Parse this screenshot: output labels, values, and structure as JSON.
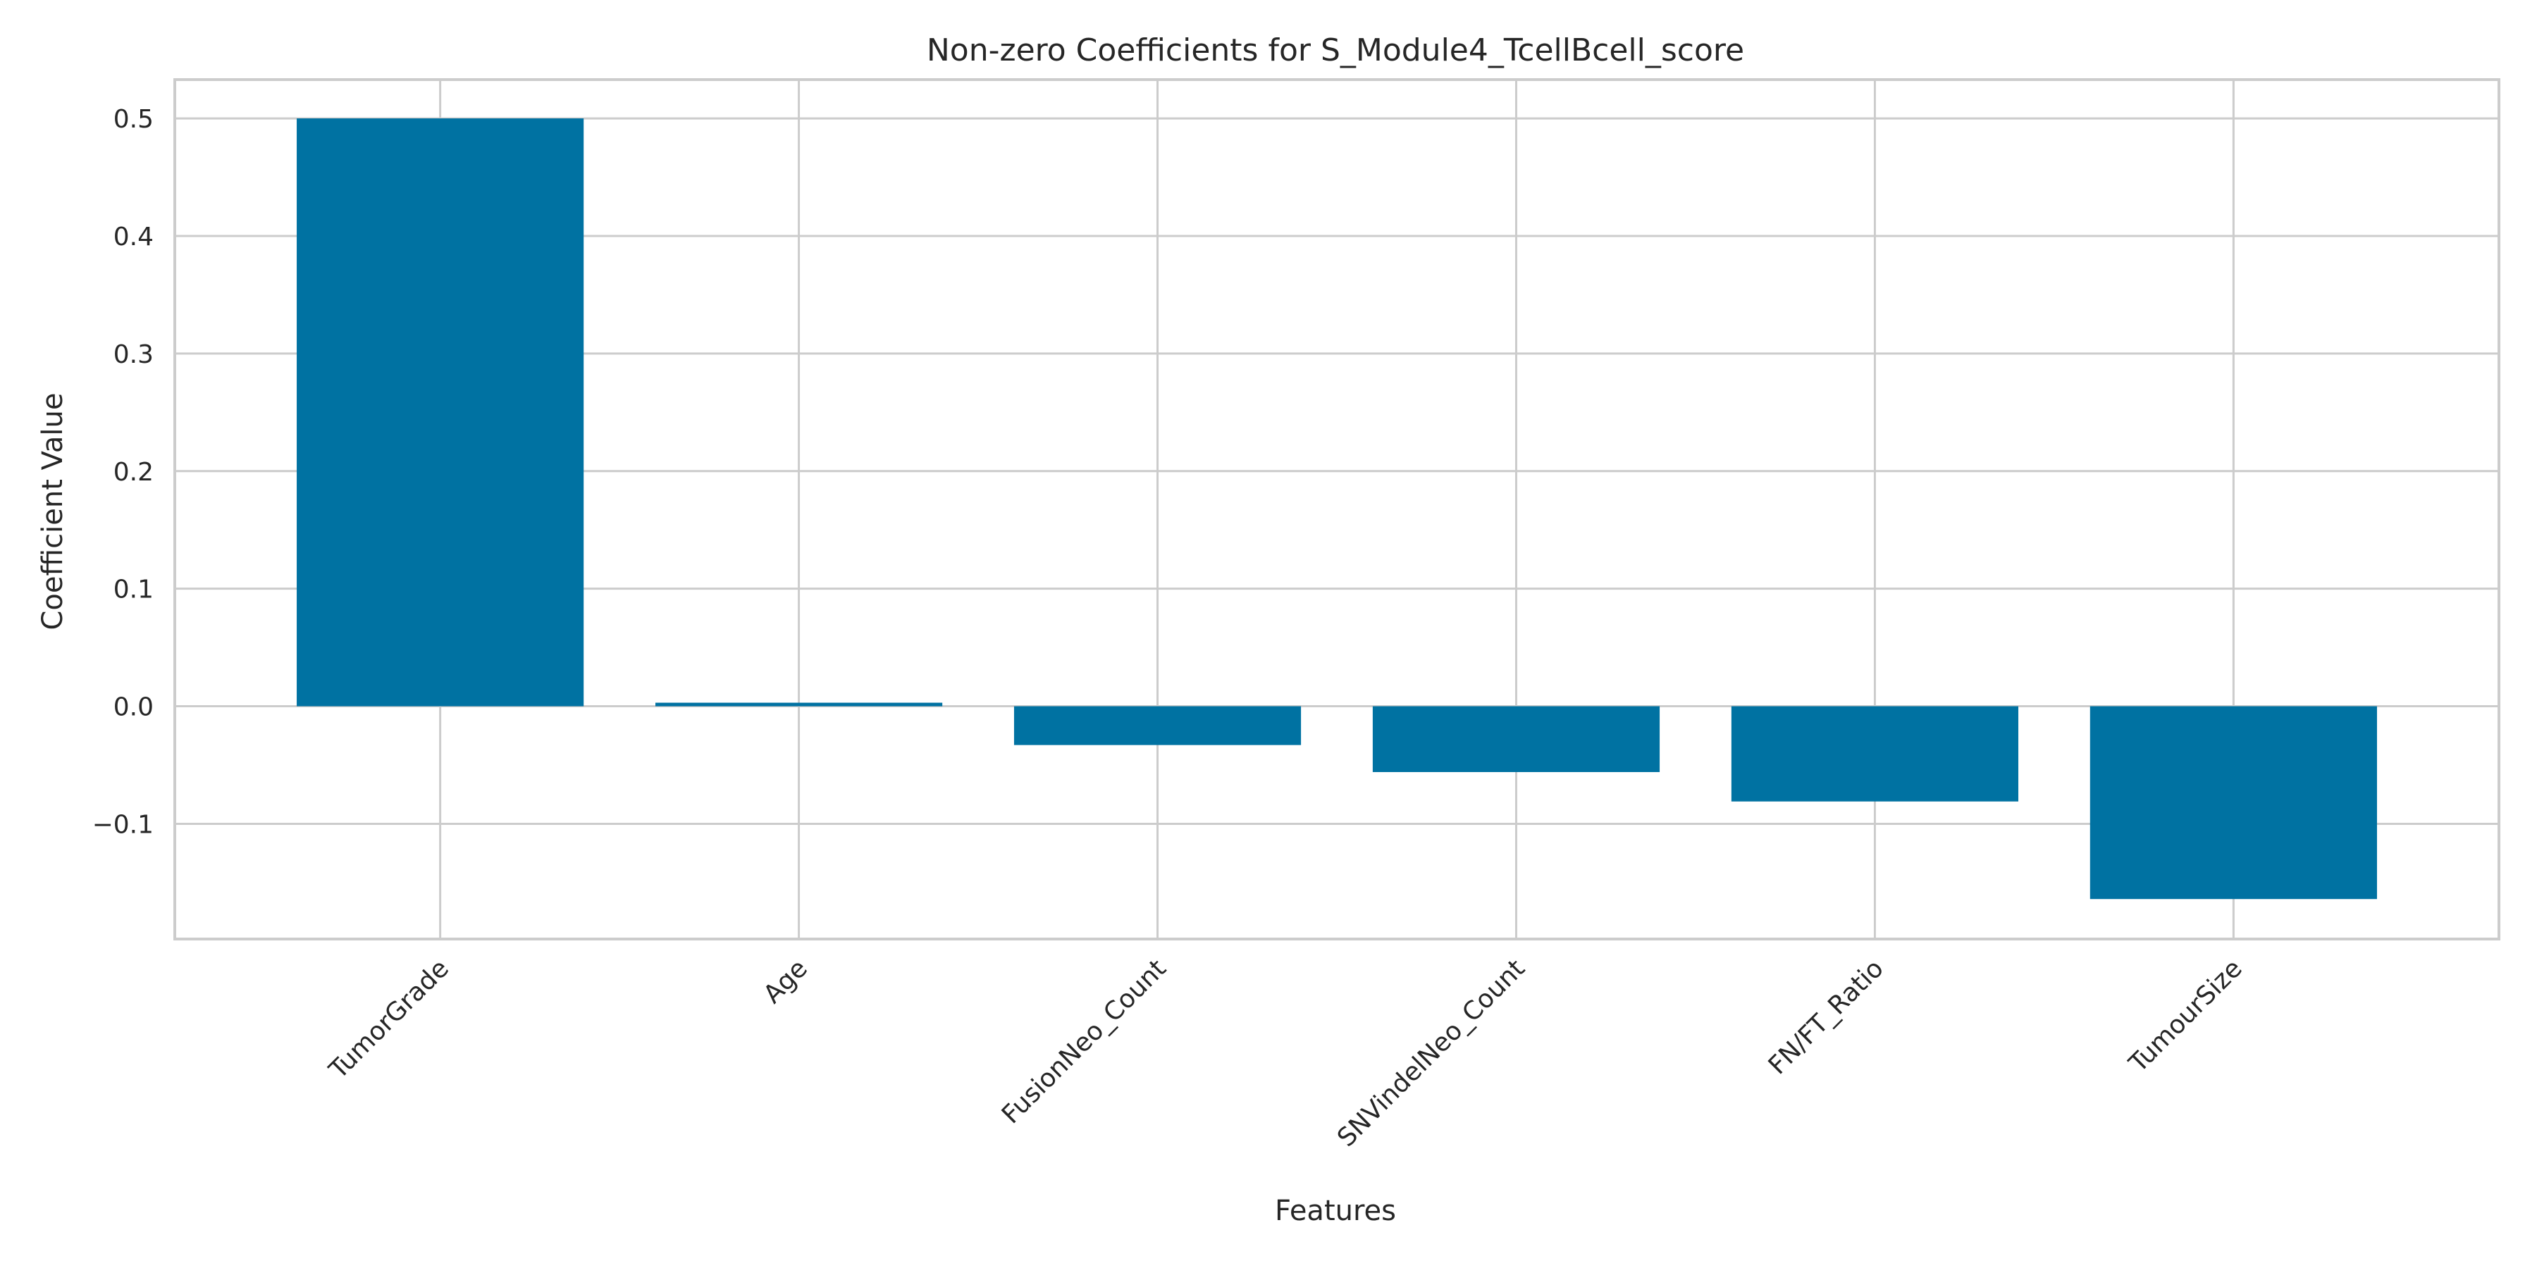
{
  "chart_data": {
    "type": "bar",
    "title": "Non-zero Coefficients for S_Module4_TcellBcell_score",
    "xlabel": "Features",
    "ylabel": "Coefficient Value",
    "categories": [
      "TumorGrade",
      "Age",
      "FusionNeo_Count",
      "SNVindelNeo_Count",
      "FN/FT_Ratio",
      "TumourSize"
    ],
    "values": [
      0.5,
      0.003,
      -0.033,
      -0.056,
      -0.081,
      -0.164
    ],
    "ylim": [
      -0.198,
      0.533
    ],
    "yticks": [
      -0.1,
      0.0,
      0.1,
      0.2,
      0.3,
      0.4,
      0.5
    ],
    "ytick_labels": [
      "−0.1",
      "0.0",
      "0.1",
      "0.2",
      "0.3",
      "0.4",
      "0.5"
    ],
    "grid": true,
    "bar_color": "#0072a2"
  }
}
